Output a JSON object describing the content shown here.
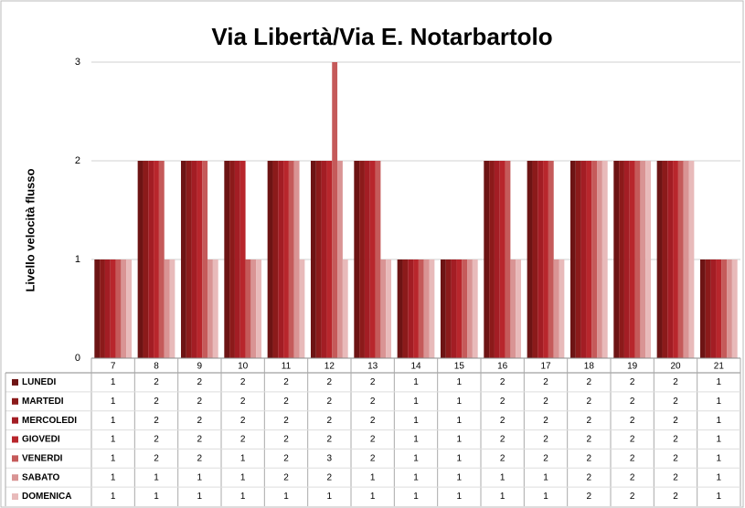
{
  "chart_data": {
    "type": "bar",
    "title": "Via Libertà/Via E. Notarbartolo",
    "y_label": "Livello velocità flusso",
    "categories": [
      "7",
      "8",
      "9",
      "10",
      "11",
      "12",
      "13",
      "14",
      "15",
      "16",
      "17",
      "18",
      "19",
      "20",
      "21"
    ],
    "series": [
      {
        "name": "LUNEDI",
        "color": "#6d1414",
        "values": [
          1,
          2,
          2,
          2,
          2,
          2,
          2,
          1,
          1,
          2,
          2,
          2,
          2,
          2,
          1
        ]
      },
      {
        "name": "MARTEDI",
        "color": "#8b1a1a",
        "values": [
          1,
          2,
          2,
          2,
          2,
          2,
          2,
          1,
          1,
          2,
          2,
          2,
          2,
          2,
          1
        ]
      },
      {
        "name": "MERCOLEDI",
        "color": "#a31d24",
        "values": [
          1,
          2,
          2,
          2,
          2,
          2,
          2,
          1,
          1,
          2,
          2,
          2,
          2,
          2,
          1
        ]
      },
      {
        "name": "GIOVEDI",
        "color": "#b8262c",
        "values": [
          1,
          2,
          2,
          2,
          2,
          2,
          2,
          1,
          1,
          2,
          2,
          2,
          2,
          2,
          1
        ]
      },
      {
        "name": "VENERDI",
        "color": "#c55a5a",
        "values": [
          1,
          2,
          2,
          1,
          2,
          3,
          2,
          1,
          1,
          2,
          2,
          2,
          2,
          2,
          1
        ]
      },
      {
        "name": "SABATO",
        "color": "#d99494",
        "values": [
          1,
          1,
          1,
          1,
          2,
          2,
          1,
          1,
          1,
          1,
          1,
          2,
          2,
          2,
          1
        ]
      },
      {
        "name": "DOMENICA",
        "color": "#e8baba",
        "values": [
          1,
          1,
          1,
          1,
          1,
          1,
          1,
          1,
          1,
          1,
          1,
          2,
          2,
          2,
          1
        ]
      }
    ],
    "ylim": [
      0,
      3
    ],
    "yticks": [
      0,
      1,
      2,
      3
    ],
    "grid": true
  }
}
